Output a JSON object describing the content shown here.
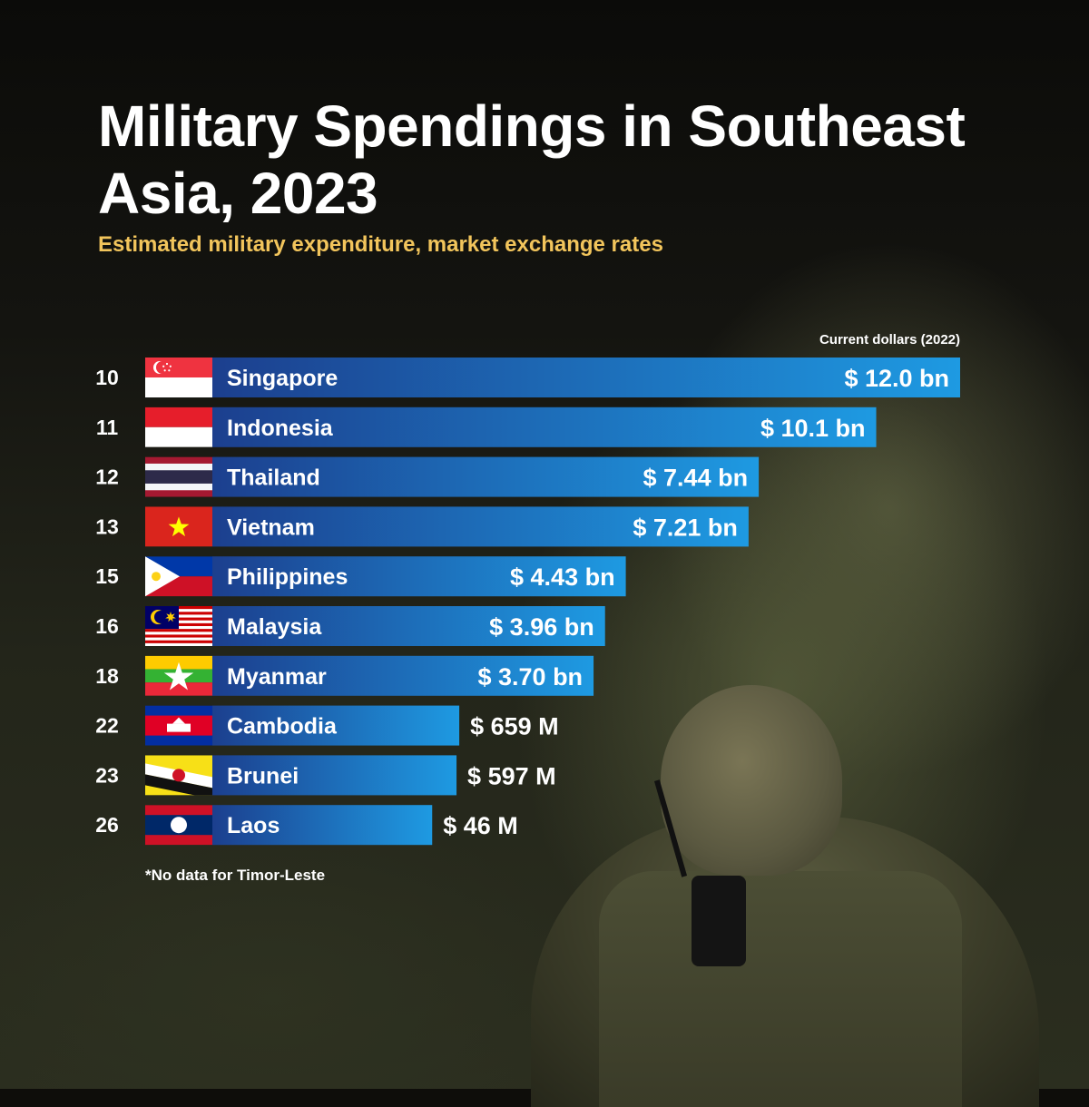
{
  "title": "Military Spendings in Southeast Asia, 2023",
  "subtitle": "Estimated military expenditure, market exchange rates",
  "unit_label": "Current dollars (2022)",
  "footnote": "*No data for Timor-Leste",
  "colors": {
    "bar_start": "#1c3f8e",
    "bar_end": "#1e9ae2",
    "title": "#ffffff",
    "subtitle": "#f2c55c"
  },
  "chart_data": {
    "type": "bar",
    "orientation": "horizontal",
    "unit": "USD billions",
    "categories": [
      "Singapore",
      "Indonesia",
      "Thailand",
      "Vietnam",
      "Philippines",
      "Malaysia",
      "Myanmar",
      "Cambodia",
      "Brunei",
      "Laos"
    ],
    "ranks": [
      "10",
      "11",
      "12",
      "13",
      "15",
      "16",
      "18",
      "22",
      "23",
      "26"
    ],
    "values": [
      12.0,
      10.1,
      7.44,
      7.21,
      4.43,
      3.96,
      3.7,
      0.659,
      0.597,
      0.046
    ],
    "value_labels": [
      "$ 12.0 bn",
      "$ 10.1 bn",
      "$ 7.44 bn",
      "$ 7.21 bn",
      "$ 4.43 bn",
      "$ 3.96 bn",
      "$ 3.70 bn",
      "$ 659 M",
      "$ 597 M",
      "$ 46 M"
    ],
    "flags": [
      "singapore-flag",
      "indonesia-flag",
      "thailand-flag",
      "vietnam-flag",
      "philippines-flag",
      "malaysia-flag",
      "myanmar-flag",
      "cambodia-flag",
      "brunei-flag",
      "laos-flag"
    ],
    "grid": false,
    "legend": "none"
  }
}
